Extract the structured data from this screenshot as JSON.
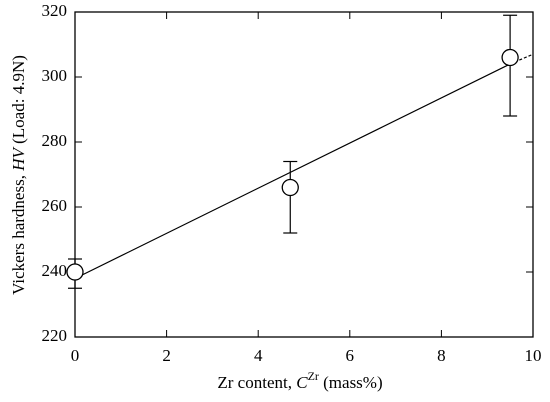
{
  "chart_data": {
    "type": "scatter",
    "xlabel": [
      "Zr content, ",
      "C",
      "Zr",
      " (mass%)"
    ],
    "ylabel": [
      "Vickers hardness, ",
      "HV",
      " (Load: 4.9N)"
    ],
    "x": [
      0,
      4.7,
      9.5
    ],
    "values": [
      240,
      266,
      306
    ],
    "error_plus": [
      4,
      8,
      13
    ],
    "error_minus": [
      5,
      14,
      18
    ],
    "fit": {
      "x": [
        0,
        9.5
      ],
      "values": [
        238,
        304
      ]
    },
    "fit_extrapolation": {
      "x": [
        9.5,
        10
      ],
      "values": [
        304,
        307
      ]
    },
    "xlim": [
      0,
      10
    ],
    "xticks": [
      0,
      2,
      4,
      6,
      8,
      10
    ],
    "ylim": [
      220,
      320
    ],
    "yticks": [
      220,
      240,
      260,
      280,
      300,
      320
    ],
    "color": "#000000"
  }
}
